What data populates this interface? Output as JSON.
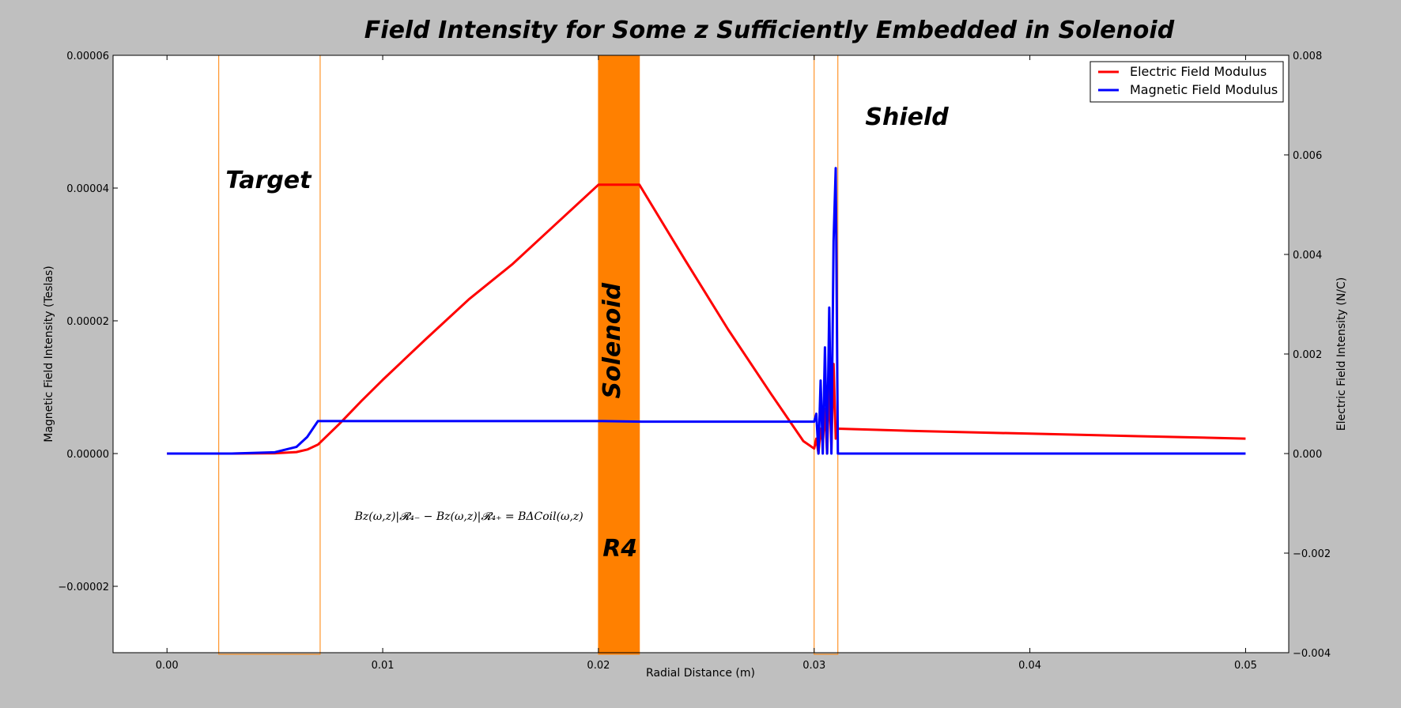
{
  "chart_data": {
    "type": "line",
    "title": "Field Intensity for Some z Sufficiently Embedded in Solenoid",
    "xlabel": "Radial Distance (m)",
    "ylabel_left": "Magnetic Field Intensity (Teslas)",
    "ylabel_right": "Electric Field Intensity (N/C)",
    "xlim": [
      -0.0025,
      0.052
    ],
    "ylim_left": [
      -3e-05,
      6e-05
    ],
    "ylim_right": [
      -0.004,
      0.008
    ],
    "x_ticks": [
      0.0,
      0.01,
      0.02,
      0.03,
      0.04,
      0.05
    ],
    "x_tick_labels": [
      "0.00",
      "0.01",
      "0.02",
      "0.03",
      "0.04",
      "0.05"
    ],
    "y_left_ticks": [
      -2e-05,
      0.0,
      2e-05,
      4e-05,
      6e-05
    ],
    "y_left_tick_labels": [
      "−0.00002",
      "0.00000",
      "0.00002",
      "0.00004",
      "0.00006"
    ],
    "y_right_ticks": [
      -0.004,
      -0.002,
      0.0,
      0.002,
      0.004,
      0.006,
      0.008
    ],
    "y_right_tick_labels": [
      "−0.004",
      "−0.002",
      "0.000",
      "0.002",
      "0.004",
      "0.006",
      "0.008"
    ],
    "grid": false,
    "legend_position": "top-right",
    "series": [
      {
        "name": "Electric Field Modulus",
        "axis": "right",
        "color": "#ff0000",
        "x": [
          0.0,
          0.003,
          0.005,
          0.006,
          0.0065,
          0.007,
          0.008,
          0.009,
          0.01,
          0.012,
          0.014,
          0.016,
          0.018,
          0.02,
          0.0219,
          0.024,
          0.026,
          0.028,
          0.0295,
          0.03,
          0.0301,
          0.0302,
          0.0303,
          0.0304,
          0.0305,
          0.0306,
          0.0307,
          0.0308,
          0.0309,
          0.031,
          0.0311,
          0.035,
          0.04,
          0.045,
          0.05
        ],
        "y": [
          0.0,
          0.0,
          5e-06,
          3e-05,
          8e-05,
          0.00018,
          0.0006,
          0.00105,
          0.00148,
          0.0023,
          0.0031,
          0.0038,
          0.0046,
          0.0054,
          0.0054,
          0.0039,
          0.0025,
          0.0012,
          0.00025,
          0.0001,
          0.0003,
          0.0,
          0.0005,
          0.0002,
          0.0009,
          0.0,
          0.0014,
          0.0001,
          0.0018,
          0.0003,
          0.0005,
          0.00045,
          0.0004,
          0.00035,
          0.0003
        ]
      },
      {
        "name": "Magnetic Field Modulus",
        "axis": "left",
        "color": "#0000ff",
        "x": [
          0.0,
          0.003,
          0.005,
          0.006,
          0.0065,
          0.007,
          0.008,
          0.012,
          0.016,
          0.02,
          0.022,
          0.026,
          0.03,
          0.0301,
          0.0302,
          0.0303,
          0.0304,
          0.0305,
          0.0306,
          0.0307,
          0.0308,
          0.0309,
          0.031,
          0.0311,
          0.035,
          0.04,
          0.045,
          0.05
        ],
        "y": [
          0.0,
          0.0,
          2e-07,
          1e-06,
          2.5e-06,
          4.9e-06,
          4.9e-06,
          4.9e-06,
          4.9e-06,
          4.9e-06,
          4.8e-06,
          4.8e-06,
          4.8e-06,
          6e-06,
          0.0,
          1.1e-05,
          0.0,
          1.6e-05,
          0.0,
          2.2e-05,
          0.0,
          3.2e-05,
          4.3e-05,
          0.0,
          0.0,
          0.0,
          0.0,
          0.0
        ]
      }
    ],
    "regions": [
      {
        "label": "Target",
        "x0": 0.0024,
        "x1": 0.0071,
        "fill": "none",
        "stroke": "#ff8000"
      },
      {
        "label": "Solenoid",
        "x0": 0.02,
        "x1": 0.0219,
        "fill": "#ff8000",
        "stroke": "#ff8000"
      },
      {
        "label": "Shield",
        "x0": 0.03,
        "x1": 0.0311,
        "fill": "none",
        "stroke": "#ff8000"
      }
    ],
    "annotations": [
      {
        "text": "Target",
        "x": 0.0047,
        "y": 4e-05
      },
      {
        "text": "Solenoid",
        "x": 0.021,
        "y": 1.7e-05,
        "rotated": true
      },
      {
        "text": "R4",
        "x": 0.021,
        "y": -1.55e-05
      },
      {
        "text": "Shield",
        "x": 0.0343,
        "y": 4.95e-05
      },
      {
        "text": "B_z(ω,z)|_{R4−} − B_z(ω,z)|_{R4+} = B_ΔCoil(ω,z)",
        "x": 0.014,
        "y": -1e-05,
        "equation": true
      }
    ],
    "annotation_display": {
      "equation": "Bz(ω,z)|𝓡₄₋ − Bz(ω,z)|𝓡₄₊ = BΔCoil(ω,z)"
    }
  }
}
